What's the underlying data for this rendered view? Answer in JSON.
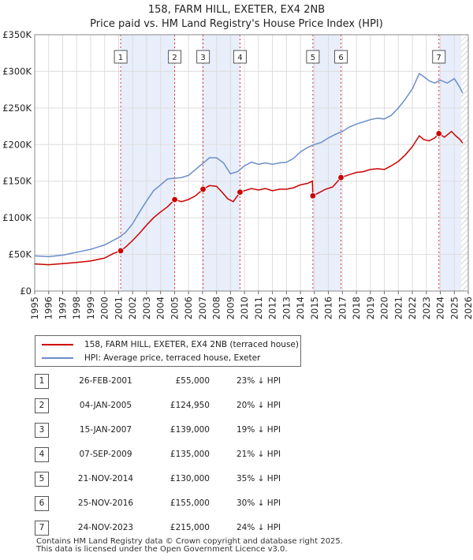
{
  "chart_data": {
    "type": "line",
    "title": "158, FARM HILL, EXETER, EX4 2NB",
    "subtitle": "Price paid vs. HM Land Registry's House Price Index (HPI)",
    "xlim": [
      1995,
      2026
    ],
    "ylim": [
      0,
      350000
    ],
    "x_ticks": [
      "1995",
      "1996",
      "1997",
      "1998",
      "1999",
      "2000",
      "2001",
      "2002",
      "2003",
      "2004",
      "2005",
      "2006",
      "2007",
      "2008",
      "2009",
      "2010",
      "2011",
      "2012",
      "2013",
      "2014",
      "2015",
      "2016",
      "2017",
      "2018",
      "2019",
      "2020",
      "2021",
      "2022",
      "2023",
      "2024",
      "2025",
      "2026"
    ],
    "y_ticks": [
      {
        "value": 0,
        "label": "£0"
      },
      {
        "value": 50000,
        "label": "£50K"
      },
      {
        "value": 100000,
        "label": "£100K"
      },
      {
        "value": 150000,
        "label": "£150K"
      },
      {
        "value": 200000,
        "label": "£200K"
      },
      {
        "value": 250000,
        "label": "£250K"
      },
      {
        "value": 300000,
        "label": "£300K"
      },
      {
        "value": 350000,
        "label": "£350K"
      }
    ],
    "grid": true,
    "shaded_bands": [
      [
        2001.15,
        2005.01
      ],
      [
        2007.04,
        2009.68
      ],
      [
        2014.89,
        2016.9
      ],
      [
        2023.9,
        2025.5
      ]
    ],
    "future_hatch_start": 2025.5,
    "series": [
      {
        "name": "158, FARM HILL, EXETER, EX4 2NB (terraced house)",
        "color": "#cc0000",
        "points": [
          [
            1995.0,
            37000
          ],
          [
            1996.0,
            36000
          ],
          [
            1997.0,
            37500
          ],
          [
            1998.0,
            39000
          ],
          [
            1999.0,
            41000
          ],
          [
            2000.0,
            45000
          ],
          [
            2000.6,
            51000
          ],
          [
            2001.15,
            55000
          ],
          [
            2001.5,
            60000
          ],
          [
            2002.0,
            69000
          ],
          [
            2002.5,
            79000
          ],
          [
            2003.0,
            90000
          ],
          [
            2003.5,
            100000
          ],
          [
            2004.0,
            108000
          ],
          [
            2004.5,
            115000
          ],
          [
            2005.01,
            124950
          ],
          [
            2005.5,
            122000
          ],
          [
            2006.0,
            125000
          ],
          [
            2006.5,
            130000
          ],
          [
            2007.04,
            139000
          ],
          [
            2007.5,
            144000
          ],
          [
            2008.0,
            143000
          ],
          [
            2008.4,
            135000
          ],
          [
            2008.8,
            126000
          ],
          [
            2009.2,
            122000
          ],
          [
            2009.68,
            135000
          ],
          [
            2010.0,
            137000
          ],
          [
            2010.5,
            140000
          ],
          [
            2011.0,
            138000
          ],
          [
            2011.5,
            140000
          ],
          [
            2012.0,
            137000
          ],
          [
            2012.5,
            139000
          ],
          [
            2013.0,
            139000
          ],
          [
            2013.5,
            141000
          ],
          [
            2014.0,
            145000
          ],
          [
            2014.5,
            147000
          ],
          [
            2014.85,
            150000
          ],
          [
            2014.89,
            130000
          ],
          [
            2015.3,
            134000
          ],
          [
            2015.8,
            139000
          ],
          [
            2016.3,
            142000
          ],
          [
            2016.9,
            155000
          ],
          [
            2017.5,
            159000
          ],
          [
            2018.0,
            162000
          ],
          [
            2018.5,
            163000
          ],
          [
            2019.0,
            166000
          ],
          [
            2019.5,
            167000
          ],
          [
            2020.0,
            166000
          ],
          [
            2020.5,
            171000
          ],
          [
            2021.0,
            177000
          ],
          [
            2021.5,
            186000
          ],
          [
            2022.0,
            197000
          ],
          [
            2022.5,
            212000
          ],
          [
            2022.8,
            207000
          ],
          [
            2023.2,
            205000
          ],
          [
            2023.6,
            209000
          ],
          [
            2023.9,
            215000
          ],
          [
            2024.3,
            210000
          ],
          [
            2024.8,
            218000
          ],
          [
            2025.1,
            212000
          ],
          [
            2025.4,
            207000
          ],
          [
            2025.6,
            202000
          ]
        ],
        "sale_markers": [
          {
            "id": "1",
            "x": 2001.15,
            "y": 55000
          },
          {
            "id": "2",
            "x": 2005.01,
            "y": 124950
          },
          {
            "id": "3",
            "x": 2007.04,
            "y": 139000
          },
          {
            "id": "4",
            "x": 2009.68,
            "y": 135000
          },
          {
            "id": "5",
            "x": 2014.89,
            "y": 130000
          },
          {
            "id": "6",
            "x": 2016.9,
            "y": 155000
          },
          {
            "id": "7",
            "x": 2023.9,
            "y": 215000
          }
        ]
      },
      {
        "name": "HPI: Average price, terraced house, Exeter",
        "color": "#6b8fc9",
        "points": [
          [
            1995.0,
            48000
          ],
          [
            1996.0,
            47000
          ],
          [
            1997.0,
            49000
          ],
          [
            1998.0,
            53000
          ],
          [
            1999.0,
            57000
          ],
          [
            2000.0,
            63000
          ],
          [
            2001.0,
            73000
          ],
          [
            2001.5,
            80000
          ],
          [
            2002.0,
            92000
          ],
          [
            2002.5,
            108000
          ],
          [
            2003.0,
            123000
          ],
          [
            2003.5,
            137000
          ],
          [
            2004.0,
            145000
          ],
          [
            2004.5,
            153000
          ],
          [
            2005.0,
            154000
          ],
          [
            2005.5,
            155000
          ],
          [
            2006.0,
            158000
          ],
          [
            2006.5,
            166000
          ],
          [
            2007.0,
            174000
          ],
          [
            2007.5,
            182000
          ],
          [
            2008.0,
            182000
          ],
          [
            2008.5,
            175000
          ],
          [
            2009.0,
            160000
          ],
          [
            2009.5,
            163000
          ],
          [
            2010.0,
            171000
          ],
          [
            2010.5,
            176000
          ],
          [
            2011.0,
            173000
          ],
          [
            2011.5,
            175000
          ],
          [
            2012.0,
            173000
          ],
          [
            2012.5,
            175000
          ],
          [
            2013.0,
            176000
          ],
          [
            2013.5,
            181000
          ],
          [
            2014.0,
            190000
          ],
          [
            2014.5,
            196000
          ],
          [
            2015.0,
            200000
          ],
          [
            2015.5,
            203000
          ],
          [
            2016.0,
            209000
          ],
          [
            2016.5,
            214000
          ],
          [
            2017.0,
            218000
          ],
          [
            2017.5,
            224000
          ],
          [
            2018.0,
            228000
          ],
          [
            2018.5,
            231000
          ],
          [
            2019.0,
            234000
          ],
          [
            2019.5,
            236000
          ],
          [
            2020.0,
            235000
          ],
          [
            2020.5,
            240000
          ],
          [
            2021.0,
            250000
          ],
          [
            2021.5,
            262000
          ],
          [
            2022.0,
            276000
          ],
          [
            2022.5,
            297000
          ],
          [
            2022.8,
            293000
          ],
          [
            2023.2,
            287000
          ],
          [
            2023.6,
            284000
          ],
          [
            2024.0,
            288000
          ],
          [
            2024.5,
            284000
          ],
          [
            2025.0,
            290000
          ],
          [
            2025.4,
            278000
          ],
          [
            2025.6,
            270000
          ]
        ]
      }
    ]
  },
  "legend": {
    "property_label": "158, FARM HILL, EXETER, EX4 2NB (terraced house)",
    "hpi_label": "HPI: Average price, terraced house, Exeter"
  },
  "sales": [
    {
      "num": "1",
      "date": "26-FEB-2001",
      "price": "£55,000",
      "hpi": "23% ↓ HPI"
    },
    {
      "num": "2",
      "date": "04-JAN-2005",
      "price": "£124,950",
      "hpi": "20% ↓ HPI"
    },
    {
      "num": "3",
      "date": "15-JAN-2007",
      "price": "£139,000",
      "hpi": "19% ↓ HPI"
    },
    {
      "num": "4",
      "date": "07-SEP-2009",
      "price": "£135,000",
      "hpi": "21% ↓ HPI"
    },
    {
      "num": "5",
      "date": "21-NOV-2014",
      "price": "£130,000",
      "hpi": "35% ↓ HPI"
    },
    {
      "num": "6",
      "date": "25-NOV-2016",
      "price": "£155,000",
      "hpi": "30% ↓ HPI"
    },
    {
      "num": "7",
      "date": "24-NOV-2023",
      "price": "£215,000",
      "hpi": "24% ↓ HPI"
    }
  ],
  "footer": {
    "line1": "Contains HM Land Registry data © Crown copyright and database right 2025.",
    "line2": "This data is licensed under the Open Government Licence v3.0."
  }
}
